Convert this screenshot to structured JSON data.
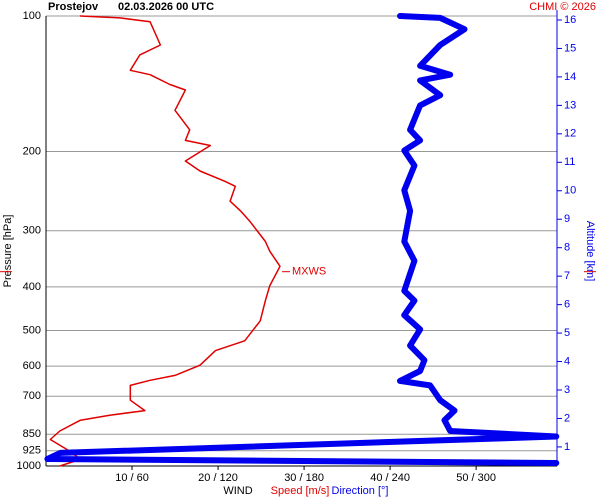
{
  "chart_data": {
    "type": "profile",
    "title": "Prostejov",
    "subtitle": "02.03.2026 00 UTC",
    "credit": "CHMI © 2026",
    "ylabel": "Pressure [hPa]",
    "y2label": "Altitude [km]",
    "xlabel": "WIND",
    "log_y": true,
    "grid": true,
    "ylim": [
      1000,
      100
    ],
    "yticks": [
      100,
      200,
      300,
      400,
      500,
      600,
      700,
      850,
      925,
      1000
    ],
    "y2lim": [
      0.33,
      16.14
    ],
    "y2ticks": [
      1,
      2,
      3,
      4,
      5,
      6,
      7,
      8,
      9,
      10,
      11,
      12,
      13,
      14,
      15,
      16
    ],
    "xlim": [
      0,
      59.4
    ],
    "x2lim": [
      0,
      356.5
    ],
    "xticks": [
      {
        "value": 10,
        "label": "10 / 60"
      },
      {
        "value": 20,
        "label": "20 / 120"
      },
      {
        "value": 30,
        "label": "30 / 180"
      },
      {
        "value": 40,
        "label": "40 / 240"
      },
      {
        "value": 50,
        "label": "50 / 300"
      }
    ],
    "series": [
      {
        "name": "Speed [m/s]",
        "color": "#e00000",
        "axis": "x",
        "y": [
          100,
          101,
          103,
          116,
          122,
          132,
          135,
          142,
          146,
          162,
          179,
          189,
          194,
          210,
          221,
          233,
          239,
          258,
          271,
          286,
          317,
          333,
          360,
          398,
          429,
          476,
          527,
          554,
          597,
          629,
          645,
          662,
          714,
          753,
          771,
          791,
          836,
          873,
          928,
          967,
          1000
        ],
        "values": [
          4.0,
          8.6,
          12.1,
          13.3,
          10.9,
          9.8,
          12.1,
          14.4,
          16.2,
          15.0,
          16.7,
          16.2,
          19.1,
          16.2,
          17.9,
          20.8,
          22.0,
          21.4,
          22.6,
          23.7,
          25.5,
          26.0,
          27.2,
          26.0,
          25.5,
          24.9,
          23.1,
          19.7,
          17.9,
          15.0,
          12.1,
          9.8,
          9.8,
          11.5,
          7.4,
          4.0,
          1.6,
          0.5,
          2.8,
          4.0,
          1.6
        ]
      },
      {
        "name": "Direction [°]",
        "color": "#0000ee",
        "axis": "x2",
        "y": [
          100,
          101,
          107,
          116,
          129,
          135,
          139,
          150,
          158,
          179,
          189,
          199,
          215,
          244,
          271,
          317,
          350,
          408,
          429,
          462,
          497,
          540,
          582,
          615,
          647,
          662,
          714,
          753,
          791,
          836,
          860,
          935,
          965,
          985
        ],
        "values": [
          247,
          275,
          292,
          275,
          261,
          282,
          261,
          275,
          261,
          254,
          261,
          250,
          257,
          250,
          254,
          250,
          257,
          250,
          257,
          250,
          261,
          254,
          264,
          261,
          247,
          268,
          275,
          285,
          278,
          282,
          356,
          10,
          1,
          356
        ]
      }
    ],
    "annotation": {
      "text": "MXWS",
      "pressure": 370
    }
  }
}
